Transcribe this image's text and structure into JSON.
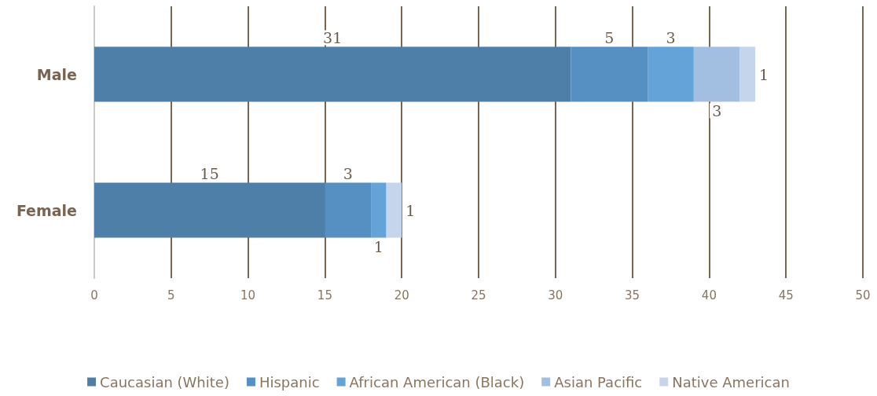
{
  "chart_data": {
    "type": "bar",
    "orientation": "horizontal",
    "stacked": true,
    "categories": [
      "Male",
      "Female"
    ],
    "series": [
      {
        "name": "Caucasian (White)",
        "color": "#4e7fa8",
        "values": [
          31,
          15
        ]
      },
      {
        "name": "Hispanic",
        "color": "#5690c2",
        "values": [
          5,
          3
        ]
      },
      {
        "name": "African American (Black)",
        "color": "#64a3d8",
        "values": [
          3,
          1
        ]
      },
      {
        "name": "Asian Pacific",
        "color": "#a2bfe2",
        "values": [
          3,
          null
        ]
      },
      {
        "name": "Native American",
        "color": "#c4d5ec",
        "values": [
          1,
          1
        ]
      }
    ],
    "xlim": [
      0,
      50
    ],
    "xticks": [
      0,
      5,
      10,
      15,
      20,
      25,
      30,
      35,
      40,
      45,
      50
    ],
    "grid": "x",
    "legend": "bottom",
    "data_labels": true
  }
}
